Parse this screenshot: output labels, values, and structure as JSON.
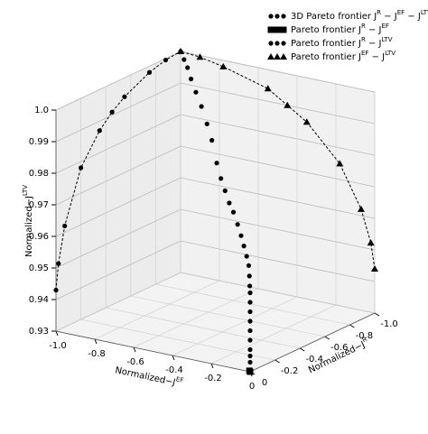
{
  "chart_data": {
    "type": "scatter3d",
    "xlabel": [
      "Normalized−J",
      "EF"
    ],
    "ylabel": [
      "Normalized−J",
      "R"
    ],
    "zlabel": [
      "Normalized−J",
      "LTV"
    ],
    "xlim": [
      -1,
      0
    ],
    "ylim": [
      -1,
      0
    ],
    "zlim": [
      0.93,
      1.0
    ],
    "xticks": [
      {
        "value": -1,
        "label": "-1.0"
      },
      -0.8,
      -0.6,
      -0.4,
      -0.2,
      0
    ],
    "yticks": [
      {
        "value": -1,
        "label": "-1.0"
      },
      -0.8,
      -0.6,
      -0.4,
      -0.2,
      0
    ],
    "zticks": [
      0.93,
      0.94,
      0.95,
      0.96,
      0.97,
      0.98,
      0.99,
      {
        "value": 1,
        "label": "1.0"
      }
    ],
    "grid": true,
    "series": [
      {
        "name": [
          "3D Pareto frontier J",
          "R",
          " − J",
          "EF",
          " − J",
          "LTV"
        ],
        "color": "#000000",
        "marker": "circle",
        "line": "none",
        "x": [
          -0.95,
          -0.9,
          -0.85,
          -0.78,
          -0.7,
          -0.62,
          -0.55,
          -0.48,
          -0.42,
          -0.36,
          -0.3,
          -0.24,
          -0.18,
          -0.13,
          -0.09,
          -0.05,
          -0.02,
          -0.01,
          -0.005,
          0,
          0,
          0,
          0,
          0,
          0,
          0,
          0,
          0
        ],
        "y": [
          -0.95,
          -0.9,
          -0.85,
          -0.78,
          -0.7,
          -0.62,
          -0.55,
          -0.48,
          -0.42,
          -0.36,
          -0.3,
          -0.24,
          -0.18,
          -0.13,
          -0.09,
          -0.05,
          -0.02,
          -0.01,
          -0.005,
          0,
          0,
          0,
          0,
          0,
          0,
          0,
          0,
          0
        ],
        "z": [
          0.999,
          0.998,
          0.996,
          0.994,
          0.992,
          0.989,
          0.986,
          0.981,
          0.978,
          0.976,
          0.974,
          0.973,
          0.971,
          0.969,
          0.967,
          0.965,
          0.963,
          0.96,
          0.957,
          0.955,
          0.952,
          0.949,
          0.946,
          0.943,
          0.94,
          0.937,
          0.935,
          0.933
        ]
      },
      {
        "name": [
          "Pareto frontier J",
          "R",
          " − J",
          "EF"
        ],
        "color": "#000000",
        "marker": "square",
        "line": "none",
        "x": [
          0,
          -0.01
        ],
        "y": [
          0,
          -0.01
        ],
        "z": [
          0.93,
          0.93
        ]
      },
      {
        "name": [
          "Pareto frontier J",
          "R",
          " − J",
          "LTV"
        ],
        "color": "#000000",
        "marker": "circle",
        "line": "dashed",
        "x": [
          -1,
          -1,
          -1,
          -1,
          -1,
          -1,
          -1,
          -1,
          -1,
          -1
        ],
        "y": [
          0,
          -0.02,
          -0.07,
          -0.2,
          -0.35,
          -0.45,
          -0.55,
          -0.75,
          -0.88,
          -1
        ],
        "z": [
          0.943,
          0.951,
          0.962,
          0.978,
          0.987,
          0.991,
          0.994,
          0.998,
          0.9995,
          1.0
        ]
      },
      {
        "name": [
          "Pareto frontier J",
          "EF",
          " − J",
          "LTV"
        ],
        "color": "#000000",
        "marker": "triangle",
        "line": "dashed",
        "x": [
          0,
          -0.02,
          -0.07,
          -0.18,
          -0.35,
          -0.45,
          -0.55,
          -0.78,
          -0.9,
          -1
        ],
        "y": [
          -1,
          -1,
          -1,
          -1,
          -1,
          -1,
          -1,
          -1,
          -1,
          -1
        ],
        "z": [
          0.944,
          0.952,
          0.962,
          0.975,
          0.986,
          0.99,
          0.994,
          0.998,
          0.9995,
          1.0
        ]
      }
    ]
  }
}
